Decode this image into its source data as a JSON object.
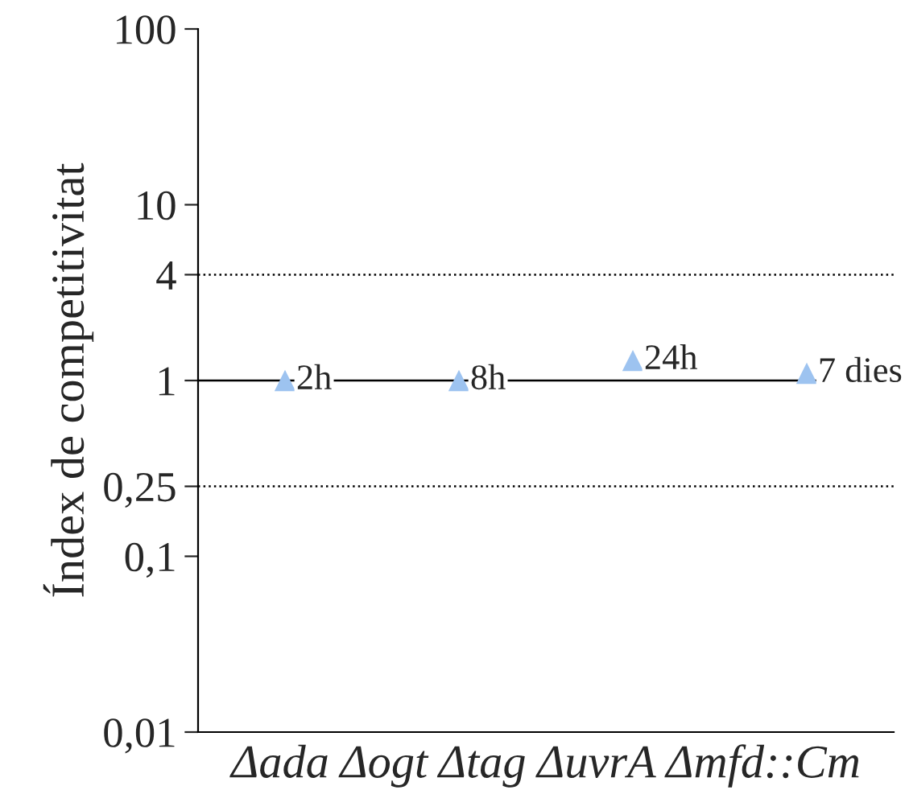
{
  "chart_data": {
    "type": "scatter",
    "ylabel": "Índex de competitivitat",
    "xlabel": "Δada Δogt Δtag ΔuvrA Δmfd::Cm",
    "categories": [
      null,
      null,
      null,
      null
    ],
    "series": [
      {
        "color": "#9dc3f0",
        "values": [
          1.0,
          1.0,
          1.3,
          1.1
        ]
      }
    ],
    "annotations": [
      {
        "text": "2h",
        "y": 1.0
      },
      {
        "text": "8h",
        "y": 1.0
      },
      {
        "text": "24h",
        "y": 1.3
      },
      {
        "text": "7 dies",
        "y": 1.1
      }
    ],
    "log": "y",
    "ylim": [
      0.01,
      100
    ],
    "yticks": [
      {
        "value": 0.01,
        "label": "0,01"
      },
      {
        "value": 0.1,
        "label": "0,1"
      },
      {
        "value": 0.25,
        "label": "0,25"
      },
      1,
      4,
      10,
      100
    ],
    "ref_lines": [
      {
        "axis": "y",
        "value": 4,
        "line_style": "dotted"
      },
      {
        "axis": "y",
        "value": 1,
        "line_style": "solid"
      },
      {
        "axis": "y",
        "value": 0.25,
        "line_style": "dotted"
      }
    ],
    "marker": "triangle",
    "grid": false,
    "legend": false
  }
}
